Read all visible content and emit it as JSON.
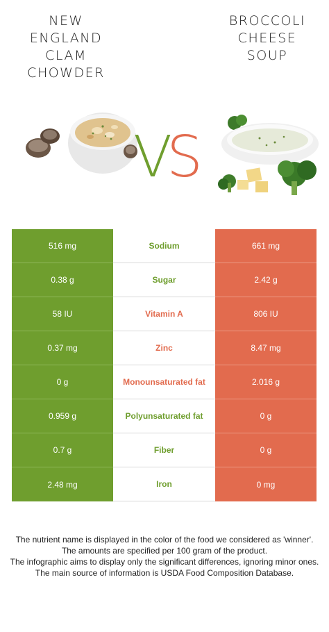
{
  "left_food": {
    "title": "NEW\nENGLAND\nCLAM\nCHOWDER"
  },
  "right_food": {
    "title": "BROCCOLI\nCHEESE\nSOUP"
  },
  "vs": {
    "v": "V",
    "s": "S"
  },
  "colors": {
    "winner_left": "#6f9e2e",
    "winner_right": "#e26b4e"
  },
  "rows": [
    {
      "left": "516 mg",
      "nutrient": "Sodium",
      "right": "661 mg",
      "winner": "left"
    },
    {
      "left": "0.38 g",
      "nutrient": "Sugar",
      "right": "2.42 g",
      "winner": "left"
    },
    {
      "left": "58 IU",
      "nutrient": "Vitamin A",
      "right": "806 IU",
      "winner": "right"
    },
    {
      "left": "0.37 mg",
      "nutrient": "Zinc",
      "right": "8.47 mg",
      "winner": "right"
    },
    {
      "left": "0 g",
      "nutrient": "Monounsaturated fat",
      "right": "2.016 g",
      "winner": "right"
    },
    {
      "left": "0.959 g",
      "nutrient": "Polyunsaturated fat",
      "right": "0 g",
      "winner": "left"
    },
    {
      "left": "0.7 g",
      "nutrient": "Fiber",
      "right": "0 g",
      "winner": "left"
    },
    {
      "left": "2.48 mg",
      "nutrient": "Iron",
      "right": "0 mg",
      "winner": "left"
    }
  ],
  "footer": [
    "The nutrient name is displayed in the color of the food we considered as 'winner'.",
    "The amounts are specified per 100 gram of the product.",
    "The infographic aims to display only the significant differences, ignoring minor ones.",
    "The main source of information is USDA Food Composition Database."
  ]
}
